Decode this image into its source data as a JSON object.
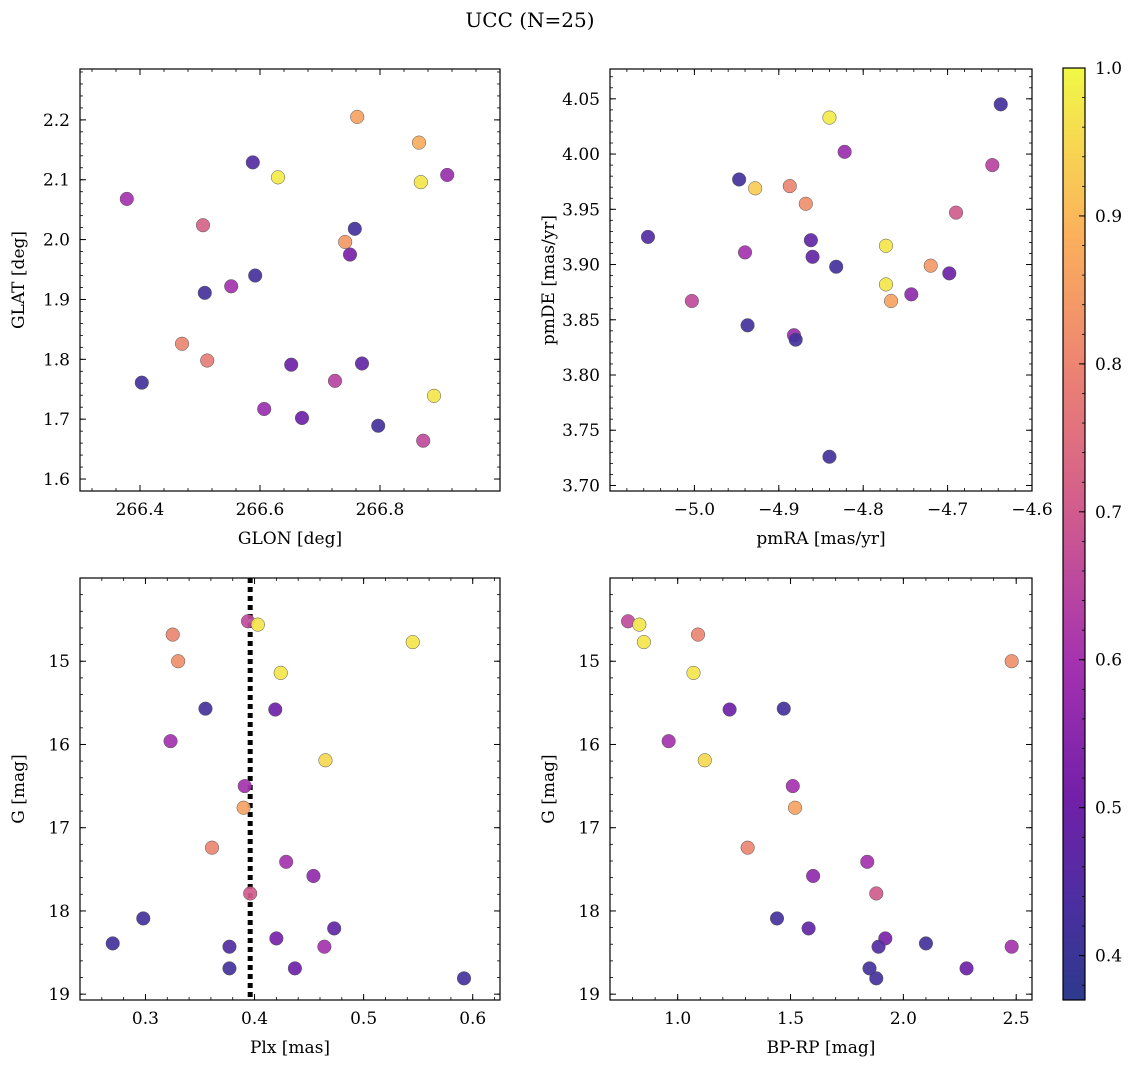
{
  "figure": {
    "title": "UCC (N=25)"
  },
  "colorbar": {
    "ticks": [
      "0.4",
      "0.5",
      "0.6",
      "0.7",
      "0.8",
      "0.9",
      "1.0"
    ],
    "range": [
      0.37,
      1.0
    ],
    "colormap": "plasma"
  },
  "chart_data": [
    {
      "type": "scatter",
      "xlabel": "GLON [deg]",
      "ylabel": "GLAT [deg]",
      "xlim": [
        266.3,
        267.0
      ],
      "ylim": [
        1.58,
        2.285
      ],
      "xticks": [
        "266.4",
        "266.6",
        "266.8"
      ],
      "yticks": [
        "1.6",
        "1.7",
        "1.8",
        "1.9",
        "2.0",
        "2.1",
        "2.2"
      ],
      "points": [
        {
          "x": 266.762,
          "y": 2.205,
          "c": 0.86
        },
        {
          "x": 266.865,
          "y": 2.162,
          "c": 0.88
        },
        {
          "x": 266.912,
          "y": 2.108,
          "c": 0.58
        },
        {
          "x": 266.868,
          "y": 2.096,
          "c": 0.97
        },
        {
          "x": 266.63,
          "y": 2.104,
          "c": 0.98
        },
        {
          "x": 266.588,
          "y": 2.129,
          "c": 0.45
        },
        {
          "x": 266.378,
          "y": 2.068,
          "c": 0.6
        },
        {
          "x": 266.505,
          "y": 2.024,
          "c": 0.72
        },
        {
          "x": 266.758,
          "y": 2.018,
          "c": 0.42
        },
        {
          "x": 266.742,
          "y": 1.996,
          "c": 0.84
        },
        {
          "x": 266.75,
          "y": 1.975,
          "c": 0.52
        },
        {
          "x": 266.592,
          "y": 1.94,
          "c": 0.42
        },
        {
          "x": 266.552,
          "y": 1.922,
          "c": 0.6
        },
        {
          "x": 266.508,
          "y": 1.911,
          "c": 0.42
        },
        {
          "x": 266.47,
          "y": 1.826,
          "c": 0.8
        },
        {
          "x": 266.512,
          "y": 1.798,
          "c": 0.78
        },
        {
          "x": 266.652,
          "y": 1.791,
          "c": 0.5
        },
        {
          "x": 266.77,
          "y": 1.793,
          "c": 0.48
        },
        {
          "x": 266.725,
          "y": 1.764,
          "c": 0.64
        },
        {
          "x": 266.403,
          "y": 1.761,
          "c": 0.42
        },
        {
          "x": 266.89,
          "y": 1.739,
          "c": 0.97
        },
        {
          "x": 266.607,
          "y": 1.717,
          "c": 0.58
        },
        {
          "x": 266.67,
          "y": 1.702,
          "c": 0.5
        },
        {
          "x": 266.797,
          "y": 1.689,
          "c": 0.42
        },
        {
          "x": 266.872,
          "y": 1.664,
          "c": 0.66
        }
      ]
    },
    {
      "type": "scatter",
      "xlabel": "pmRA [mas/yr]",
      "ylabel": "pmDE [mas/yr]",
      "xlim": [
        -5.1,
        -4.6
      ],
      "ylim": [
        3.695,
        4.077
      ],
      "xticks": [
        "−5.0",
        "−4.9",
        "−4.8",
        "−4.7",
        "−4.6"
      ],
      "yticks": [
        "3.70",
        "3.75",
        "3.80",
        "3.85",
        "3.90",
        "3.95",
        "4.00",
        "4.05"
      ],
      "points": [
        {
          "x": -4.84,
          "y": 4.033,
          "c": 0.98
        },
        {
          "x": -4.637,
          "y": 4.045,
          "c": 0.42
        },
        {
          "x": -4.822,
          "y": 4.002,
          "c": 0.58
        },
        {
          "x": -4.647,
          "y": 3.99,
          "c": 0.64
        },
        {
          "x": -4.947,
          "y": 3.977,
          "c": 0.42
        },
        {
          "x": -4.928,
          "y": 3.969,
          "c": 0.93
        },
        {
          "x": -4.887,
          "y": 3.971,
          "c": 0.8
        },
        {
          "x": -4.868,
          "y": 3.955,
          "c": 0.82
        },
        {
          "x": -4.69,
          "y": 3.947,
          "c": 0.7
        },
        {
          "x": -5.055,
          "y": 3.925,
          "c": 0.45
        },
        {
          "x": -4.862,
          "y": 3.922,
          "c": 0.48
        },
        {
          "x": -4.773,
          "y": 3.917,
          "c": 0.97
        },
        {
          "x": -4.94,
          "y": 3.911,
          "c": 0.6
        },
        {
          "x": -4.86,
          "y": 3.907,
          "c": 0.48
        },
        {
          "x": -4.72,
          "y": 3.899,
          "c": 0.84
        },
        {
          "x": -4.832,
          "y": 3.898,
          "c": 0.42
        },
        {
          "x": -4.698,
          "y": 3.892,
          "c": 0.5
        },
        {
          "x": -4.773,
          "y": 3.882,
          "c": 0.97
        },
        {
          "x": -4.743,
          "y": 3.873,
          "c": 0.56
        },
        {
          "x": -4.767,
          "y": 3.867,
          "c": 0.86
        },
        {
          "x": -5.003,
          "y": 3.867,
          "c": 0.66
        },
        {
          "x": -4.937,
          "y": 3.845,
          "c": 0.42
        },
        {
          "x": -4.882,
          "y": 3.836,
          "c": 0.58
        },
        {
          "x": -4.88,
          "y": 3.832,
          "c": 0.42
        },
        {
          "x": -4.84,
          "y": 3.726,
          "c": 0.42
        }
      ]
    },
    {
      "type": "scatter",
      "xlabel": "Plx [mas]",
      "ylabel": "G [mag]",
      "xlim": [
        0.24,
        0.625
      ],
      "ylim": [
        19.07,
        14.0
      ],
      "y_inverted": true,
      "vline": 0.396,
      "xticks": [
        "0.3",
        "0.4",
        "0.5",
        "0.6"
      ],
      "yticks": [
        "15",
        "16",
        "17",
        "18",
        "19"
      ],
      "points": [
        {
          "x": 0.394,
          "y": 14.52,
          "c": 0.66
        },
        {
          "x": 0.403,
          "y": 14.56,
          "c": 0.97
        },
        {
          "x": 0.325,
          "y": 14.68,
          "c": 0.8
        },
        {
          "x": 0.545,
          "y": 14.77,
          "c": 0.97
        },
        {
          "x": 0.33,
          "y": 15.0,
          "c": 0.82
        },
        {
          "x": 0.424,
          "y": 15.14,
          "c": 0.97
        },
        {
          "x": 0.355,
          "y": 15.57,
          "c": 0.42
        },
        {
          "x": 0.419,
          "y": 15.58,
          "c": 0.5
        },
        {
          "x": 0.323,
          "y": 15.96,
          "c": 0.6
        },
        {
          "x": 0.465,
          "y": 16.19,
          "c": 0.95
        },
        {
          "x": 0.391,
          "y": 16.5,
          "c": 0.6
        },
        {
          "x": 0.39,
          "y": 16.76,
          "c": 0.86
        },
        {
          "x": 0.361,
          "y": 17.24,
          "c": 0.8
        },
        {
          "x": 0.429,
          "y": 17.41,
          "c": 0.6
        },
        {
          "x": 0.454,
          "y": 17.58,
          "c": 0.56
        },
        {
          "x": 0.396,
          "y": 17.79,
          "c": 0.7
        },
        {
          "x": 0.298,
          "y": 18.09,
          "c": 0.42
        },
        {
          "x": 0.473,
          "y": 18.21,
          "c": 0.48
        },
        {
          "x": 0.42,
          "y": 18.33,
          "c": 0.52
        },
        {
          "x": 0.27,
          "y": 18.39,
          "c": 0.42
        },
        {
          "x": 0.377,
          "y": 18.43,
          "c": 0.45
        },
        {
          "x": 0.464,
          "y": 18.43,
          "c": 0.6
        },
        {
          "x": 0.377,
          "y": 18.69,
          "c": 0.42
        },
        {
          "x": 0.437,
          "y": 18.69,
          "c": 0.5
        },
        {
          "x": 0.592,
          "y": 18.81,
          "c": 0.42
        }
      ]
    },
    {
      "type": "scatter",
      "xlabel": "BP-RP [mag]",
      "ylabel": "G [mag]",
      "xlim": [
        0.7,
        2.57
      ],
      "ylim": [
        19.07,
        14.0
      ],
      "y_inverted": true,
      "xticks": [
        "1.0",
        "1.5",
        "2.0",
        "2.5"
      ],
      "yticks": [
        "15",
        "16",
        "17",
        "18",
        "19"
      ],
      "points": [
        {
          "x": 0.78,
          "y": 14.52,
          "c": 0.66
        },
        {
          "x": 0.83,
          "y": 14.56,
          "c": 0.97
        },
        {
          "x": 1.09,
          "y": 14.68,
          "c": 0.8
        },
        {
          "x": 0.85,
          "y": 14.77,
          "c": 0.97
        },
        {
          "x": 2.48,
          "y": 15.0,
          "c": 0.82
        },
        {
          "x": 1.07,
          "y": 15.14,
          "c": 0.97
        },
        {
          "x": 1.47,
          "y": 15.57,
          "c": 0.42
        },
        {
          "x": 1.23,
          "y": 15.58,
          "c": 0.5
        },
        {
          "x": 0.96,
          "y": 15.96,
          "c": 0.6
        },
        {
          "x": 1.12,
          "y": 16.19,
          "c": 0.95
        },
        {
          "x": 1.51,
          "y": 16.5,
          "c": 0.6
        },
        {
          "x": 1.52,
          "y": 16.76,
          "c": 0.86
        },
        {
          "x": 1.31,
          "y": 17.24,
          "c": 0.8
        },
        {
          "x": 1.84,
          "y": 17.41,
          "c": 0.6
        },
        {
          "x": 1.6,
          "y": 17.58,
          "c": 0.56
        },
        {
          "x": 1.88,
          "y": 17.79,
          "c": 0.7
        },
        {
          "x": 1.44,
          "y": 18.09,
          "c": 0.42
        },
        {
          "x": 1.58,
          "y": 18.21,
          "c": 0.48
        },
        {
          "x": 1.92,
          "y": 18.33,
          "c": 0.52
        },
        {
          "x": 2.1,
          "y": 18.39,
          "c": 0.42
        },
        {
          "x": 1.89,
          "y": 18.43,
          "c": 0.45
        },
        {
          "x": 2.48,
          "y": 18.43,
          "c": 0.6
        },
        {
          "x": 1.85,
          "y": 18.69,
          "c": 0.42
        },
        {
          "x": 2.28,
          "y": 18.69,
          "c": 0.5
        },
        {
          "x": 1.88,
          "y": 18.81,
          "c": 0.42
        }
      ]
    }
  ]
}
